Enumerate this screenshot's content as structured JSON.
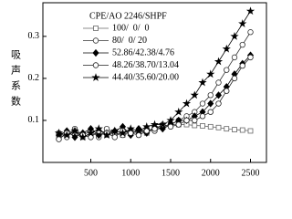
{
  "chart_data": {
    "type": "line",
    "y_label": "吸声系数",
    "legend_title": "CPE/AO 2246/SHPF",
    "x": [
      100,
      200,
      300,
      400,
      500,
      600,
      700,
      800,
      900,
      1000,
      1100,
      1200,
      1300,
      1400,
      1500,
      1600,
      1700,
      1800,
      1900,
      2000,
      2100,
      2200,
      2300,
      2400,
      2500
    ],
    "series": [
      {
        "name": "100/  0/  0",
        "color": "#666666",
        "marker": "square",
        "filled": false,
        "values": [
          0.06,
          0.065,
          0.07,
          0.06,
          0.065,
          0.07,
          0.065,
          0.07,
          0.065,
          0.07,
          0.075,
          0.07,
          0.08,
          0.085,
          0.09,
          0.09,
          0.09,
          0.088,
          0.087,
          0.085,
          0.083,
          0.08,
          0.078,
          0.077,
          0.075
        ]
      },
      {
        "name": "80/  0/ 20",
        "color": "#333333",
        "marker": "circle",
        "filled": false,
        "values": [
          0.07,
          0.06,
          0.08,
          0.065,
          0.075,
          0.06,
          0.08,
          0.07,
          0.065,
          0.075,
          0.07,
          0.08,
          0.075,
          0.085,
          0.09,
          0.1,
          0.11,
          0.12,
          0.14,
          0.16,
          0.19,
          0.22,
          0.25,
          0.28,
          0.31
        ]
      },
      {
        "name": "52.86/42.38/4.76",
        "color": "#000000",
        "marker": "diamond",
        "filled": true,
        "values": [
          0.065,
          0.075,
          0.06,
          0.07,
          0.08,
          0.065,
          0.07,
          0.075,
          0.085,
          0.065,
          0.08,
          0.07,
          0.085,
          0.08,
          0.09,
          0.1,
          0.1,
          0.11,
          0.12,
          0.14,
          0.16,
          0.18,
          0.21,
          0.235,
          0.255
        ]
      },
      {
        "name": "48.26/38.70/13.04",
        "color": "#222222",
        "marker": "circle",
        "filled": false,
        "values": [
          0.055,
          0.07,
          0.075,
          0.065,
          0.06,
          0.075,
          0.07,
          0.06,
          0.075,
          0.07,
          0.065,
          0.075,
          0.08,
          0.09,
          0.085,
          0.09,
          0.1,
          0.1,
          0.11,
          0.12,
          0.14,
          0.17,
          0.2,
          0.23,
          0.25
        ]
      },
      {
        "name": "44.40/35.60/20.00",
        "color": "#000000",
        "marker": "star",
        "filled": true,
        "values": [
          0.07,
          0.065,
          0.075,
          0.06,
          0.07,
          0.08,
          0.065,
          0.075,
          0.07,
          0.08,
          0.075,
          0.085,
          0.09,
          0.09,
          0.1,
          0.12,
          0.14,
          0.16,
          0.19,
          0.21,
          0.24,
          0.27,
          0.3,
          0.33,
          0.36
        ]
      }
    ],
    "xlim": [
      -100,
      2700
    ],
    "xticks": [
      500,
      1000,
      1500,
      2000,
      2500
    ],
    "ylim": [
      0,
      0.38
    ],
    "yticks": [
      0.1,
      0.2,
      0.3
    ]
  }
}
